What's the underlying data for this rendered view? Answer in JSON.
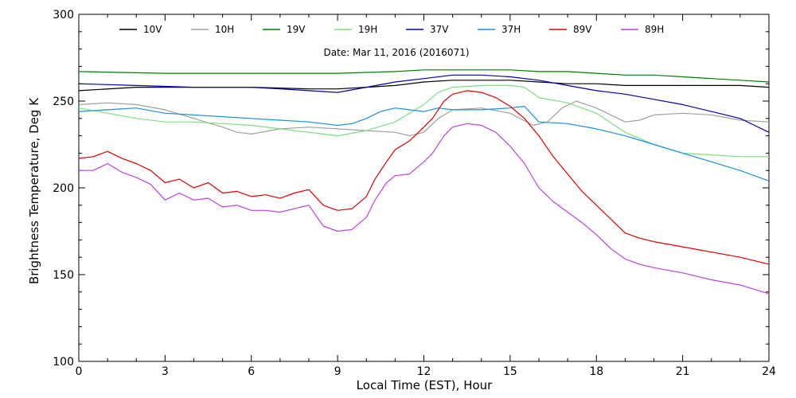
{
  "chart_data": {
    "type": "line",
    "subtitle": "Date: Mar 11, 2016 (2016071)",
    "xlabel": "Local Time (EST), Hour",
    "ylabel": "Brightness Temperature, Deg K",
    "xlim": [
      0,
      24
    ],
    "ylim": [
      100,
      300
    ],
    "x_ticks": [
      0,
      3,
      6,
      9,
      12,
      15,
      18,
      21,
      24
    ],
    "y_ticks": [
      100,
      150,
      200,
      250,
      300
    ],
    "grid": false,
    "legend_position": "top",
    "series": [
      {
        "name": "10V",
        "color": "#000000",
        "points": [
          [
            0,
            256
          ],
          [
            2,
            258
          ],
          [
            4,
            258
          ],
          [
            6,
            258
          ],
          [
            8,
            257
          ],
          [
            9,
            257
          ],
          [
            10,
            258
          ],
          [
            11,
            259
          ],
          [
            12,
            261
          ],
          [
            13,
            262
          ],
          [
            14,
            262
          ],
          [
            15,
            262
          ],
          [
            16,
            261
          ],
          [
            17,
            260
          ],
          [
            18,
            260
          ],
          [
            19,
            259
          ],
          [
            20,
            259
          ],
          [
            21,
            259
          ],
          [
            22,
            259
          ],
          [
            23,
            259
          ],
          [
            24,
            258
          ]
        ]
      },
      {
        "name": "10H",
        "color": "#a0a0a0",
        "points": [
          [
            0,
            248
          ],
          [
            1,
            249
          ],
          [
            2,
            248
          ],
          [
            3,
            245
          ],
          [
            4,
            240
          ],
          [
            5,
            235
          ],
          [
            5.5,
            232
          ],
          [
            6,
            231
          ],
          [
            7,
            234
          ],
          [
            8,
            235
          ],
          [
            9,
            234
          ],
          [
            10,
            233
          ],
          [
            11,
            232
          ],
          [
            11.5,
            230
          ],
          [
            12,
            232
          ],
          [
            12.5,
            240
          ],
          [
            13,
            245
          ],
          [
            14,
            246
          ],
          [
            15,
            243
          ],
          [
            15.8,
            236
          ],
          [
            16.3,
            238
          ],
          [
            16.8,
            246
          ],
          [
            17.3,
            250
          ],
          [
            18,
            246
          ],
          [
            18.5,
            242
          ],
          [
            19,
            238
          ],
          [
            19.5,
            239
          ],
          [
            20,
            242
          ],
          [
            21,
            243
          ],
          [
            22,
            242
          ],
          [
            23,
            239
          ],
          [
            24,
            238
          ]
        ]
      },
      {
        "name": "19V",
        "color": "#007f00",
        "points": [
          [
            0,
            267
          ],
          [
            3,
            266
          ],
          [
            6,
            266
          ],
          [
            9,
            266
          ],
          [
            11,
            267
          ],
          [
            12,
            268
          ],
          [
            13,
            268
          ],
          [
            14,
            268
          ],
          [
            15,
            268
          ],
          [
            16,
            267
          ],
          [
            17,
            267
          ],
          [
            18,
            266
          ],
          [
            19,
            265
          ],
          [
            20,
            265
          ],
          [
            21,
            264
          ],
          [
            22,
            263
          ],
          [
            23,
            262
          ],
          [
            24,
            261
          ]
        ]
      },
      {
        "name": "19H",
        "color": "#7ce07c",
        "points": [
          [
            0,
            246
          ],
          [
            1,
            243
          ],
          [
            2,
            240
          ],
          [
            3,
            238
          ],
          [
            4,
            238
          ],
          [
            5,
            237
          ],
          [
            6,
            236
          ],
          [
            7,
            234
          ],
          [
            8,
            232
          ],
          [
            8.5,
            231
          ],
          [
            9,
            230
          ],
          [
            10,
            233
          ],
          [
            11,
            238
          ],
          [
            11.5,
            243
          ],
          [
            12,
            248
          ],
          [
            12.5,
            255
          ],
          [
            13,
            258
          ],
          [
            14,
            259
          ],
          [
            15,
            259
          ],
          [
            15.5,
            258
          ],
          [
            16,
            252
          ],
          [
            17,
            249
          ],
          [
            18,
            243
          ],
          [
            19,
            232
          ],
          [
            20,
            225
          ],
          [
            21,
            220
          ],
          [
            22,
            219
          ],
          [
            23,
            218
          ],
          [
            24,
            218
          ]
        ]
      },
      {
        "name": "37V",
        "color": "#0000b0",
        "points": [
          [
            0,
            260
          ],
          [
            2,
            259
          ],
          [
            4,
            258
          ],
          [
            6,
            258
          ],
          [
            7,
            257
          ],
          [
            8,
            256
          ],
          [
            9,
            255
          ],
          [
            10,
            258
          ],
          [
            11,
            261
          ],
          [
            12,
            263
          ],
          [
            13,
            265
          ],
          [
            14,
            265
          ],
          [
            15,
            264
          ],
          [
            16,
            262
          ],
          [
            17,
            259
          ],
          [
            18,
            256
          ],
          [
            19,
            254
          ],
          [
            20,
            251
          ],
          [
            21,
            248
          ],
          [
            22,
            244
          ],
          [
            23,
            240
          ],
          [
            23.5,
            236
          ],
          [
            24,
            232
          ]
        ]
      },
      {
        "name": "37H",
        "color": "#1a8fe0",
        "points": [
          [
            0,
            244
          ],
          [
            1,
            245
          ],
          [
            2,
            246
          ],
          [
            3,
            243
          ],
          [
            4,
            242
          ],
          [
            5,
            241
          ],
          [
            6,
            240
          ],
          [
            7,
            239
          ],
          [
            8,
            238
          ],
          [
            8.5,
            237
          ],
          [
            9,
            236
          ],
          [
            9.5,
            237
          ],
          [
            10,
            240
          ],
          [
            10.5,
            244
          ],
          [
            11,
            246
          ],
          [
            12,
            244
          ],
          [
            12.5,
            246
          ],
          [
            13,
            245
          ],
          [
            14,
            245
          ],
          [
            15,
            246
          ],
          [
            15.5,
            247
          ],
          [
            16,
            238
          ],
          [
            17,
            237
          ],
          [
            18,
            234
          ],
          [
            19,
            230
          ],
          [
            20,
            225
          ],
          [
            21,
            220
          ],
          [
            22,
            215
          ],
          [
            23,
            210
          ],
          [
            24,
            204
          ]
        ]
      },
      {
        "name": "89V",
        "color": "#e00000",
        "points": [
          [
            0,
            217
          ],
          [
            0.5,
            218
          ],
          [
            1,
            221
          ],
          [
            1.5,
            217
          ],
          [
            2,
            214
          ],
          [
            2.5,
            210
          ],
          [
            3,
            203
          ],
          [
            3.5,
            205
          ],
          [
            4,
            200
          ],
          [
            4.5,
            203
          ],
          [
            5,
            197
          ],
          [
            5.5,
            198
          ],
          [
            6,
            195
          ],
          [
            6.5,
            196
          ],
          [
            7,
            194
          ],
          [
            7.5,
            197
          ],
          [
            8,
            199
          ],
          [
            8.5,
            190
          ],
          [
            9,
            187
          ],
          [
            9.5,
            188
          ],
          [
            10,
            195
          ],
          [
            10.3,
            205
          ],
          [
            10.7,
            215
          ],
          [
            11,
            222
          ],
          [
            11.5,
            227
          ],
          [
            12,
            235
          ],
          [
            12.3,
            240
          ],
          [
            12.7,
            250
          ],
          [
            13,
            254
          ],
          [
            13.5,
            256
          ],
          [
            14,
            255
          ],
          [
            14.5,
            252
          ],
          [
            15,
            247
          ],
          [
            15.5,
            240
          ],
          [
            16,
            230
          ],
          [
            16.5,
            218
          ],
          [
            17,
            208
          ],
          [
            17.5,
            198
          ],
          [
            18,
            190
          ],
          [
            18.5,
            182
          ],
          [
            19,
            174
          ],
          [
            19.5,
            171
          ],
          [
            20,
            169
          ],
          [
            21,
            166
          ],
          [
            22,
            163
          ],
          [
            23,
            160
          ],
          [
            24,
            156
          ]
        ]
      },
      {
        "name": "89H",
        "color": "#c040e0",
        "points": [
          [
            0,
            210
          ],
          [
            0.5,
            210
          ],
          [
            1,
            214
          ],
          [
            1.5,
            209
          ],
          [
            2,
            206
          ],
          [
            2.5,
            202
          ],
          [
            3,
            193
          ],
          [
            3.5,
            197
          ],
          [
            4,
            193
          ],
          [
            4.5,
            194
          ],
          [
            5,
            189
          ],
          [
            5.5,
            190
          ],
          [
            6,
            187
          ],
          [
            6.5,
            187
          ],
          [
            7,
            186
          ],
          [
            7.5,
            188
          ],
          [
            8,
            190
          ],
          [
            8.5,
            178
          ],
          [
            9,
            175
          ],
          [
            9.5,
            176
          ],
          [
            10,
            183
          ],
          [
            10.3,
            193
          ],
          [
            10.7,
            203
          ],
          [
            11,
            207
          ],
          [
            11.5,
            208
          ],
          [
            12,
            215
          ],
          [
            12.3,
            220
          ],
          [
            12.7,
            230
          ],
          [
            13,
            235
          ],
          [
            13.5,
            237
          ],
          [
            14,
            236
          ],
          [
            14.5,
            232
          ],
          [
            15,
            224
          ],
          [
            15.5,
            214
          ],
          [
            16,
            200
          ],
          [
            16.5,
            192
          ],
          [
            17,
            186
          ],
          [
            17.5,
            180
          ],
          [
            18,
            173
          ],
          [
            18.5,
            165
          ],
          [
            19,
            159
          ],
          [
            19.5,
            156
          ],
          [
            20,
            154
          ],
          [
            21,
            151
          ],
          [
            22,
            147
          ],
          [
            23,
            144
          ],
          [
            24,
            139
          ]
        ]
      }
    ]
  }
}
